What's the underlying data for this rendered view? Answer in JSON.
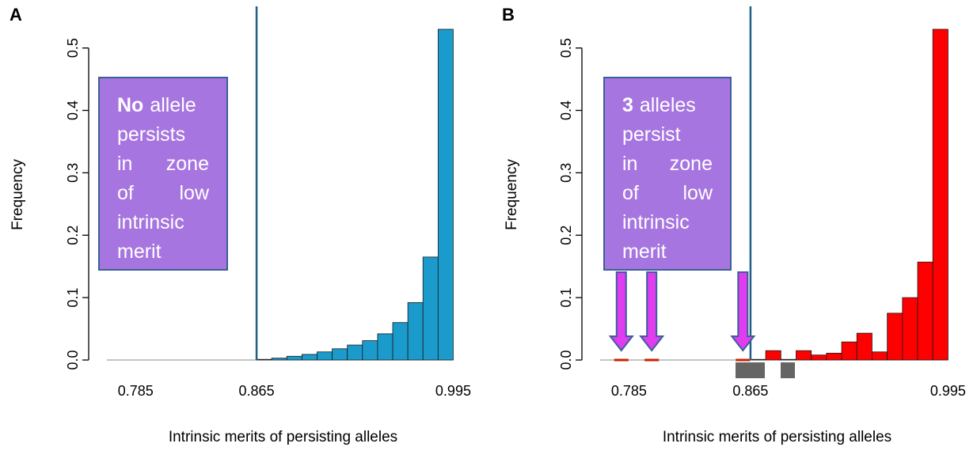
{
  "chart_data": [
    {
      "type": "bar",
      "panel_label": "A",
      "xlabel": "Intrinsic merits of persisting alleles",
      "ylabel": "Frequency",
      "xlim": [
        0.765,
        1.0
      ],
      "ylim": [
        0,
        0.53
      ],
      "x_ticks": [
        "0.785",
        "0.865",
        "0.995"
      ],
      "y_ticks": [
        "0.0",
        "0.1",
        "0.2",
        "0.3",
        "0.4",
        "0.5"
      ],
      "threshold": 0.865,
      "bar_color": "#1a9bcc",
      "bin_edges": [
        0.865,
        0.875,
        0.885,
        0.895,
        0.905,
        0.915,
        0.925,
        0.935,
        0.945,
        0.955,
        0.965,
        0.975,
        0.985,
        0.995
      ],
      "values": [
        0.001,
        0.003,
        0.006,
        0.009,
        0.013,
        0.018,
        0.024,
        0.031,
        0.042,
        0.06,
        0.092,
        0.165,
        0.53
      ],
      "annotation": {
        "emphasis": "No",
        "lines": [
          [
            "allele"
          ],
          [
            "persists"
          ],
          [
            "in",
            "zone"
          ],
          [
            "of",
            "low"
          ],
          [
            "intrinsic"
          ],
          [
            "merit"
          ]
        ]
      }
    },
    {
      "type": "bar",
      "panel_label": "B",
      "xlabel": "Intrinsic merits of persisting alleles",
      "ylabel": "Frequency",
      "xlim": [
        0.765,
        1.0
      ],
      "ylim": [
        0,
        0.53
      ],
      "x_ticks": [
        "0.785",
        "0.865",
        "0.995"
      ],
      "y_ticks": [
        "0.0",
        "0.1",
        "0.2",
        "0.3",
        "0.4",
        "0.5"
      ],
      "threshold": 0.865,
      "bar_color": "#ff0000",
      "low_merit_alleles": [
        0.78,
        0.8,
        0.86
      ],
      "bin_edges": [
        0.865,
        0.875,
        0.885,
        0.895,
        0.905,
        0.915,
        0.925,
        0.935,
        0.945,
        0.955,
        0.965,
        0.975,
        0.985,
        0.995
      ],
      "values": [
        0.001,
        0.015,
        0.001,
        0.015,
        0.008,
        0.011,
        0.029,
        0.043,
        0.013,
        0.075,
        0.1,
        0.157,
        0.53
      ],
      "annotation": {
        "emphasis": "3",
        "lines": [
          [
            "alleles"
          ],
          [
            "persist"
          ],
          [
            "in",
            "zone"
          ],
          [
            "of",
            "low"
          ],
          [
            "intrinsic"
          ],
          [
            "merit"
          ]
        ]
      }
    }
  ]
}
